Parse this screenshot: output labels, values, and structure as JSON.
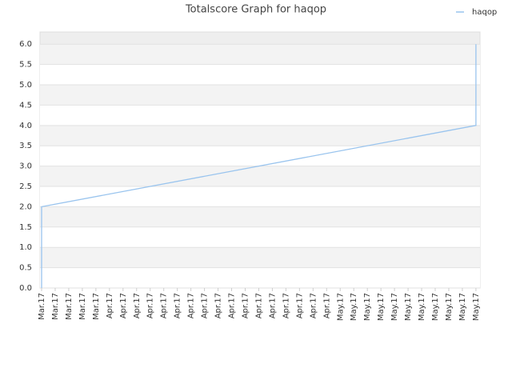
{
  "chart_data": {
    "type": "line",
    "title": "Totalscore Graph for haqop",
    "x": [
      0,
      0,
      32,
      32
    ],
    "series": [
      {
        "name": "haqop",
        "color": "#99c4ee",
        "values": [
          0,
          2.0,
          4.0,
          6.0
        ]
      }
    ],
    "xlim": [
      0,
      32.3
    ],
    "xticks": [
      {
        "value": 0,
        "label": "Mar.17"
      },
      {
        "value": 1,
        "label": "Mar.17"
      },
      {
        "value": 2,
        "label": "Mar.17"
      },
      {
        "value": 3,
        "label": "Mar.17"
      },
      {
        "value": 4,
        "label": "Mar.17"
      },
      {
        "value": 5,
        "label": "Apr.17"
      },
      {
        "value": 6,
        "label": "Apr.17"
      },
      {
        "value": 7,
        "label": "Apr.17"
      },
      {
        "value": 8,
        "label": "Apr.17"
      },
      {
        "value": 9,
        "label": "Apr.17"
      },
      {
        "value": 10,
        "label": "Apr.17"
      },
      {
        "value": 11,
        "label": "Apr.17"
      },
      {
        "value": 12,
        "label": "Apr.17"
      },
      {
        "value": 13,
        "label": "Apr.17"
      },
      {
        "value": 14,
        "label": "Apr.17"
      },
      {
        "value": 15,
        "label": "Apr.17"
      },
      {
        "value": 16,
        "label": "Apr.17"
      },
      {
        "value": 17,
        "label": "Apr.17"
      },
      {
        "value": 18,
        "label": "Apr.17"
      },
      {
        "value": 19,
        "label": "Apr.17"
      },
      {
        "value": 20,
        "label": "Apr.17"
      },
      {
        "value": 21,
        "label": "Apr.17"
      },
      {
        "value": 22,
        "label": "May.17"
      },
      {
        "value": 23,
        "label": "May.17"
      },
      {
        "value": 24,
        "label": "May.17"
      },
      {
        "value": 25,
        "label": "May.17"
      },
      {
        "value": 26,
        "label": "May.17"
      },
      {
        "value": 27,
        "label": "May.17"
      },
      {
        "value": 28,
        "label": "May.17"
      },
      {
        "value": 29,
        "label": "May.17"
      },
      {
        "value": 30,
        "label": "May.17"
      },
      {
        "value": 31,
        "label": "May.17"
      },
      {
        "value": 32,
        "label": "May.17"
      }
    ],
    "ylim": [
      0,
      6.3
    ],
    "yticks": [
      {
        "value": 0,
        "label": "0.0"
      },
      {
        "value": 0.5,
        "label": "0.5"
      },
      {
        "value": 1,
        "label": "1.0"
      },
      {
        "value": 1.5,
        "label": "1.5"
      },
      {
        "value": 2,
        "label": "2.0"
      },
      {
        "value": 2.5,
        "label": "2.5"
      },
      {
        "value": 3,
        "label": "3.0"
      },
      {
        "value": 3.5,
        "label": "3.5"
      },
      {
        "value": 4,
        "label": "4.0"
      },
      {
        "value": 4.5,
        "label": "4.5"
      },
      {
        "value": 5,
        "label": "5.0"
      },
      {
        "value": 5.5,
        "label": "5.5"
      },
      {
        "value": 6,
        "label": "6.0"
      }
    ],
    "grid": true,
    "legend": "top-right"
  }
}
